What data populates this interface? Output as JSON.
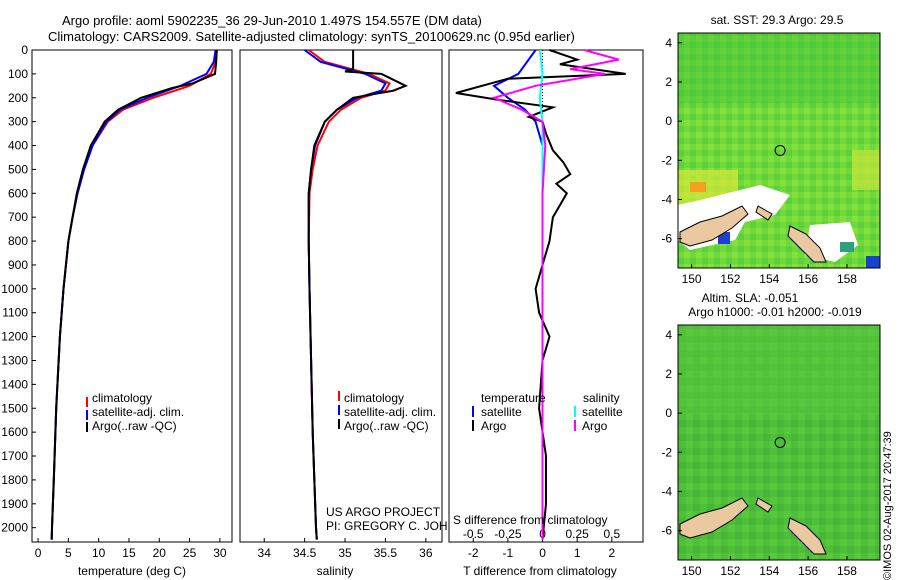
{
  "header": {
    "title_line1": "Argo profile: aoml 5902235_36 29-Jun-2010 1.497S 154.557E (DM data)",
    "title_line2": "Climatology: CARS2009. Satellite-adjusted climatology: synTS_20100629.nc (0.95d earlier)"
  },
  "colors": {
    "climatology": "#ff0000",
    "satellite": "#0000ff",
    "argo": "#000000",
    "salinity_satellite": "#00ffff",
    "salinity_argo": "#ff00ff"
  },
  "chart_data": [
    {
      "type": "line",
      "name": "temperature",
      "xlabel": "temperature (deg C)",
      "xlim": [
        -1,
        32
      ],
      "ylim": [
        2060,
        0
      ],
      "xticks": [
        0,
        5,
        10,
        15,
        20,
        25,
        30
      ],
      "yticks": [
        0,
        100,
        200,
        300,
        400,
        500,
        600,
        700,
        800,
        900,
        1000,
        1100,
        1200,
        1300,
        1400,
        1500,
        1600,
        1700,
        1800,
        1900,
        2000
      ],
      "legend": [
        "climatology",
        "satellite-adj. clim.",
        "Argo(..raw -QC)"
      ],
      "series": [
        {
          "name": "climatology",
          "depth": [
            0,
            50,
            100,
            150,
            200,
            250,
            300,
            400,
            500,
            600,
            700,
            800,
            1000,
            1200,
            1500,
            1800,
            2000,
            2050
          ],
          "values": [
            29.5,
            29.3,
            28.5,
            25.0,
            19.0,
            14.0,
            11.5,
            9.0,
            7.6,
            6.5,
            5.7,
            5.0,
            4.2,
            3.6,
            3.0,
            2.6,
            2.3,
            2.25
          ]
        },
        {
          "name": "satellite",
          "depth": [
            0,
            50,
            100,
            150,
            200,
            250,
            300,
            400,
            500,
            600,
            700,
            800,
            1000,
            1200,
            1500,
            1800,
            2000,
            2050
          ],
          "values": [
            29.3,
            29.0,
            27.8,
            23.5,
            18.0,
            13.5,
            11.3,
            9.0,
            7.6,
            6.5,
            5.7,
            5.0,
            4.2,
            3.6,
            3.0,
            2.6,
            2.3,
            2.25
          ]
        },
        {
          "name": "Argo",
          "depth": [
            0,
            50,
            100,
            140,
            160,
            200,
            250,
            300,
            400,
            500,
            600,
            700,
            800,
            1000,
            1200,
            1500,
            1800,
            2000,
            2050
          ],
          "values": [
            29.5,
            29.4,
            29.2,
            25.5,
            22.0,
            17.0,
            13.2,
            11.0,
            8.7,
            7.4,
            6.4,
            5.7,
            5.0,
            4.2,
            3.6,
            3.0,
            2.6,
            2.3,
            2.25
          ]
        }
      ]
    },
    {
      "type": "line",
      "name": "salinity",
      "xlabel": "salinity",
      "xlim": [
        33.7,
        36.2
      ],
      "ylim": [
        2060,
        0
      ],
      "xticks": [
        34,
        34.5,
        35,
        35.5,
        36
      ],
      "legend": [
        "climatology",
        "satellite-adj. clim.",
        "Argo(..raw -QC)"
      ],
      "series": [
        {
          "name": "climatology",
          "depth": [
            0,
            50,
            100,
            140,
            170,
            200,
            250,
            300,
            400,
            500,
            600,
            800,
            1000,
            1300,
            1600,
            2000,
            2050
          ],
          "values": [
            34.55,
            34.75,
            35.3,
            35.55,
            35.5,
            35.2,
            34.95,
            34.8,
            34.66,
            34.6,
            34.56,
            34.55,
            34.56,
            34.58,
            34.6,
            34.64,
            34.65
          ]
        },
        {
          "name": "satellite",
          "depth": [
            0,
            50,
            100,
            140,
            170,
            200,
            250,
            300,
            400,
            500,
            600,
            800,
            1000,
            1300,
            1600,
            2000,
            2050
          ],
          "values": [
            34.5,
            34.7,
            35.25,
            35.5,
            35.45,
            35.15,
            34.9,
            34.75,
            34.63,
            34.58,
            34.55,
            34.55,
            34.56,
            34.58,
            34.6,
            34.64,
            34.65
          ]
        },
        {
          "name": "Argo",
          "depth": [
            0,
            80,
            90,
            100,
            150,
            170,
            200,
            250,
            300,
            400,
            500,
            600,
            800,
            1000,
            1300,
            1600,
            2000,
            2050
          ],
          "values": [
            35.1,
            35.1,
            35.0,
            35.45,
            35.75,
            35.6,
            35.1,
            34.9,
            34.75,
            34.62,
            34.58,
            34.55,
            34.55,
            34.56,
            34.58,
            34.6,
            34.64,
            34.65
          ]
        }
      ]
    },
    {
      "type": "line",
      "name": "differences",
      "xlabel": "T difference from climatology",
      "xlabel_top": "S difference from climatology",
      "xlim": [
        -2.7,
        2.9
      ],
      "ylim": [
        2060,
        0
      ],
      "xticks": [
        -2,
        -1,
        0,
        1,
        2
      ],
      "xticks_top": [
        -0.5,
        -0.25,
        0,
        0.25,
        0.5
      ],
      "xtick_top_labels": [
        "-0.5",
        "-0.25",
        "0",
        "0.25",
        "0.5"
      ],
      "legend_left_title": "temperature",
      "legend_right_title": "salinity",
      "legend": [
        "satellite",
        "Argo",
        "satellite",
        "Argo"
      ],
      "series": [
        {
          "name": "temperature satellite",
          "depth": [
            0,
            100,
            150,
            200,
            250,
            300,
            400,
            500,
            700,
            1000,
            1500,
            2050
          ],
          "values": [
            -0.2,
            -0.7,
            -1.4,
            -1.0,
            -0.5,
            -0.2,
            0.0,
            0.0,
            0.0,
            0.0,
            0.0,
            0.0
          ]
        },
        {
          "name": "temperature Argo",
          "depth": [
            0,
            40,
            60,
            100,
            120,
            180,
            210,
            240,
            280,
            300,
            350,
            420,
            470,
            520,
            560,
            600,
            650,
            700,
            800,
            900,
            1000,
            1100,
            1200,
            1300,
            1500,
            1700,
            1900,
            2050
          ],
          "values": [
            0.2,
            1.0,
            0.5,
            2.4,
            -1.0,
            -2.5,
            -1.2,
            0.3,
            -0.4,
            0.0,
            0.1,
            0.3,
            0.6,
            0.8,
            0.4,
            0.7,
            0.5,
            0.3,
            0.2,
            0.0,
            -0.2,
            -0.1,
            0.2,
            0.0,
            -0.1,
            0.1,
            0.1,
            0.0
          ]
        },
        {
          "name": "salinity satellite",
          "depth": [
            0,
            100,
            200,
            300,
            400,
            600,
            800,
            1000,
            1500,
            2050
          ],
          "values": [
            -0.02,
            0.0,
            -0.02,
            0.0,
            0.0,
            0.0,
            0.0,
            0.0,
            0.0,
            0.0
          ]
        },
        {
          "name": "salinity Argo",
          "depth": [
            0,
            40,
            80,
            100,
            150,
            200,
            250,
            300,
            400,
            600,
            800,
            1000,
            1500,
            2050
          ],
          "values": [
            0.3,
            0.55,
            0.2,
            0.45,
            -0.05,
            -0.35,
            -0.15,
            0.0,
            0.02,
            0.0,
            0.0,
            0.0,
            0.0,
            0.0
          ]
        }
      ]
    },
    {
      "type": "heatmap",
      "name": "sst_map",
      "title": "sat. SST: 29.3 Argo: 29.5",
      "xlim": [
        149.3,
        159.7
      ],
      "ylim": [
        -7.5,
        4.5
      ],
      "xticks": [
        150,
        152,
        154,
        156,
        158
      ],
      "yticks": [
        4,
        2,
        0,
        -2,
        -4,
        -6
      ],
      "argo_position": {
        "lon": 154.557,
        "lat": -1.497
      }
    },
    {
      "type": "heatmap",
      "name": "sla_map",
      "title_line1": "Altim. SLA: -0.051",
      "title_line2": "Argo h1000: -0.01 h2000: -0.019",
      "xlim": [
        149.3,
        159.7
      ],
      "ylim": [
        -7.5,
        4.5
      ],
      "xticks": [
        150,
        152,
        154,
        156,
        158
      ],
      "yticks": [
        4,
        2,
        0,
        -2,
        -4,
        -6
      ],
      "argo_position": {
        "lon": 154.557,
        "lat": -1.497
      }
    }
  ],
  "credits": {
    "project": "US ARGO PROJECT",
    "pi": "PI: GREGORY C. JOHNSON"
  },
  "stamp": "©IMOS 02-Aug-2017 20:47:39"
}
